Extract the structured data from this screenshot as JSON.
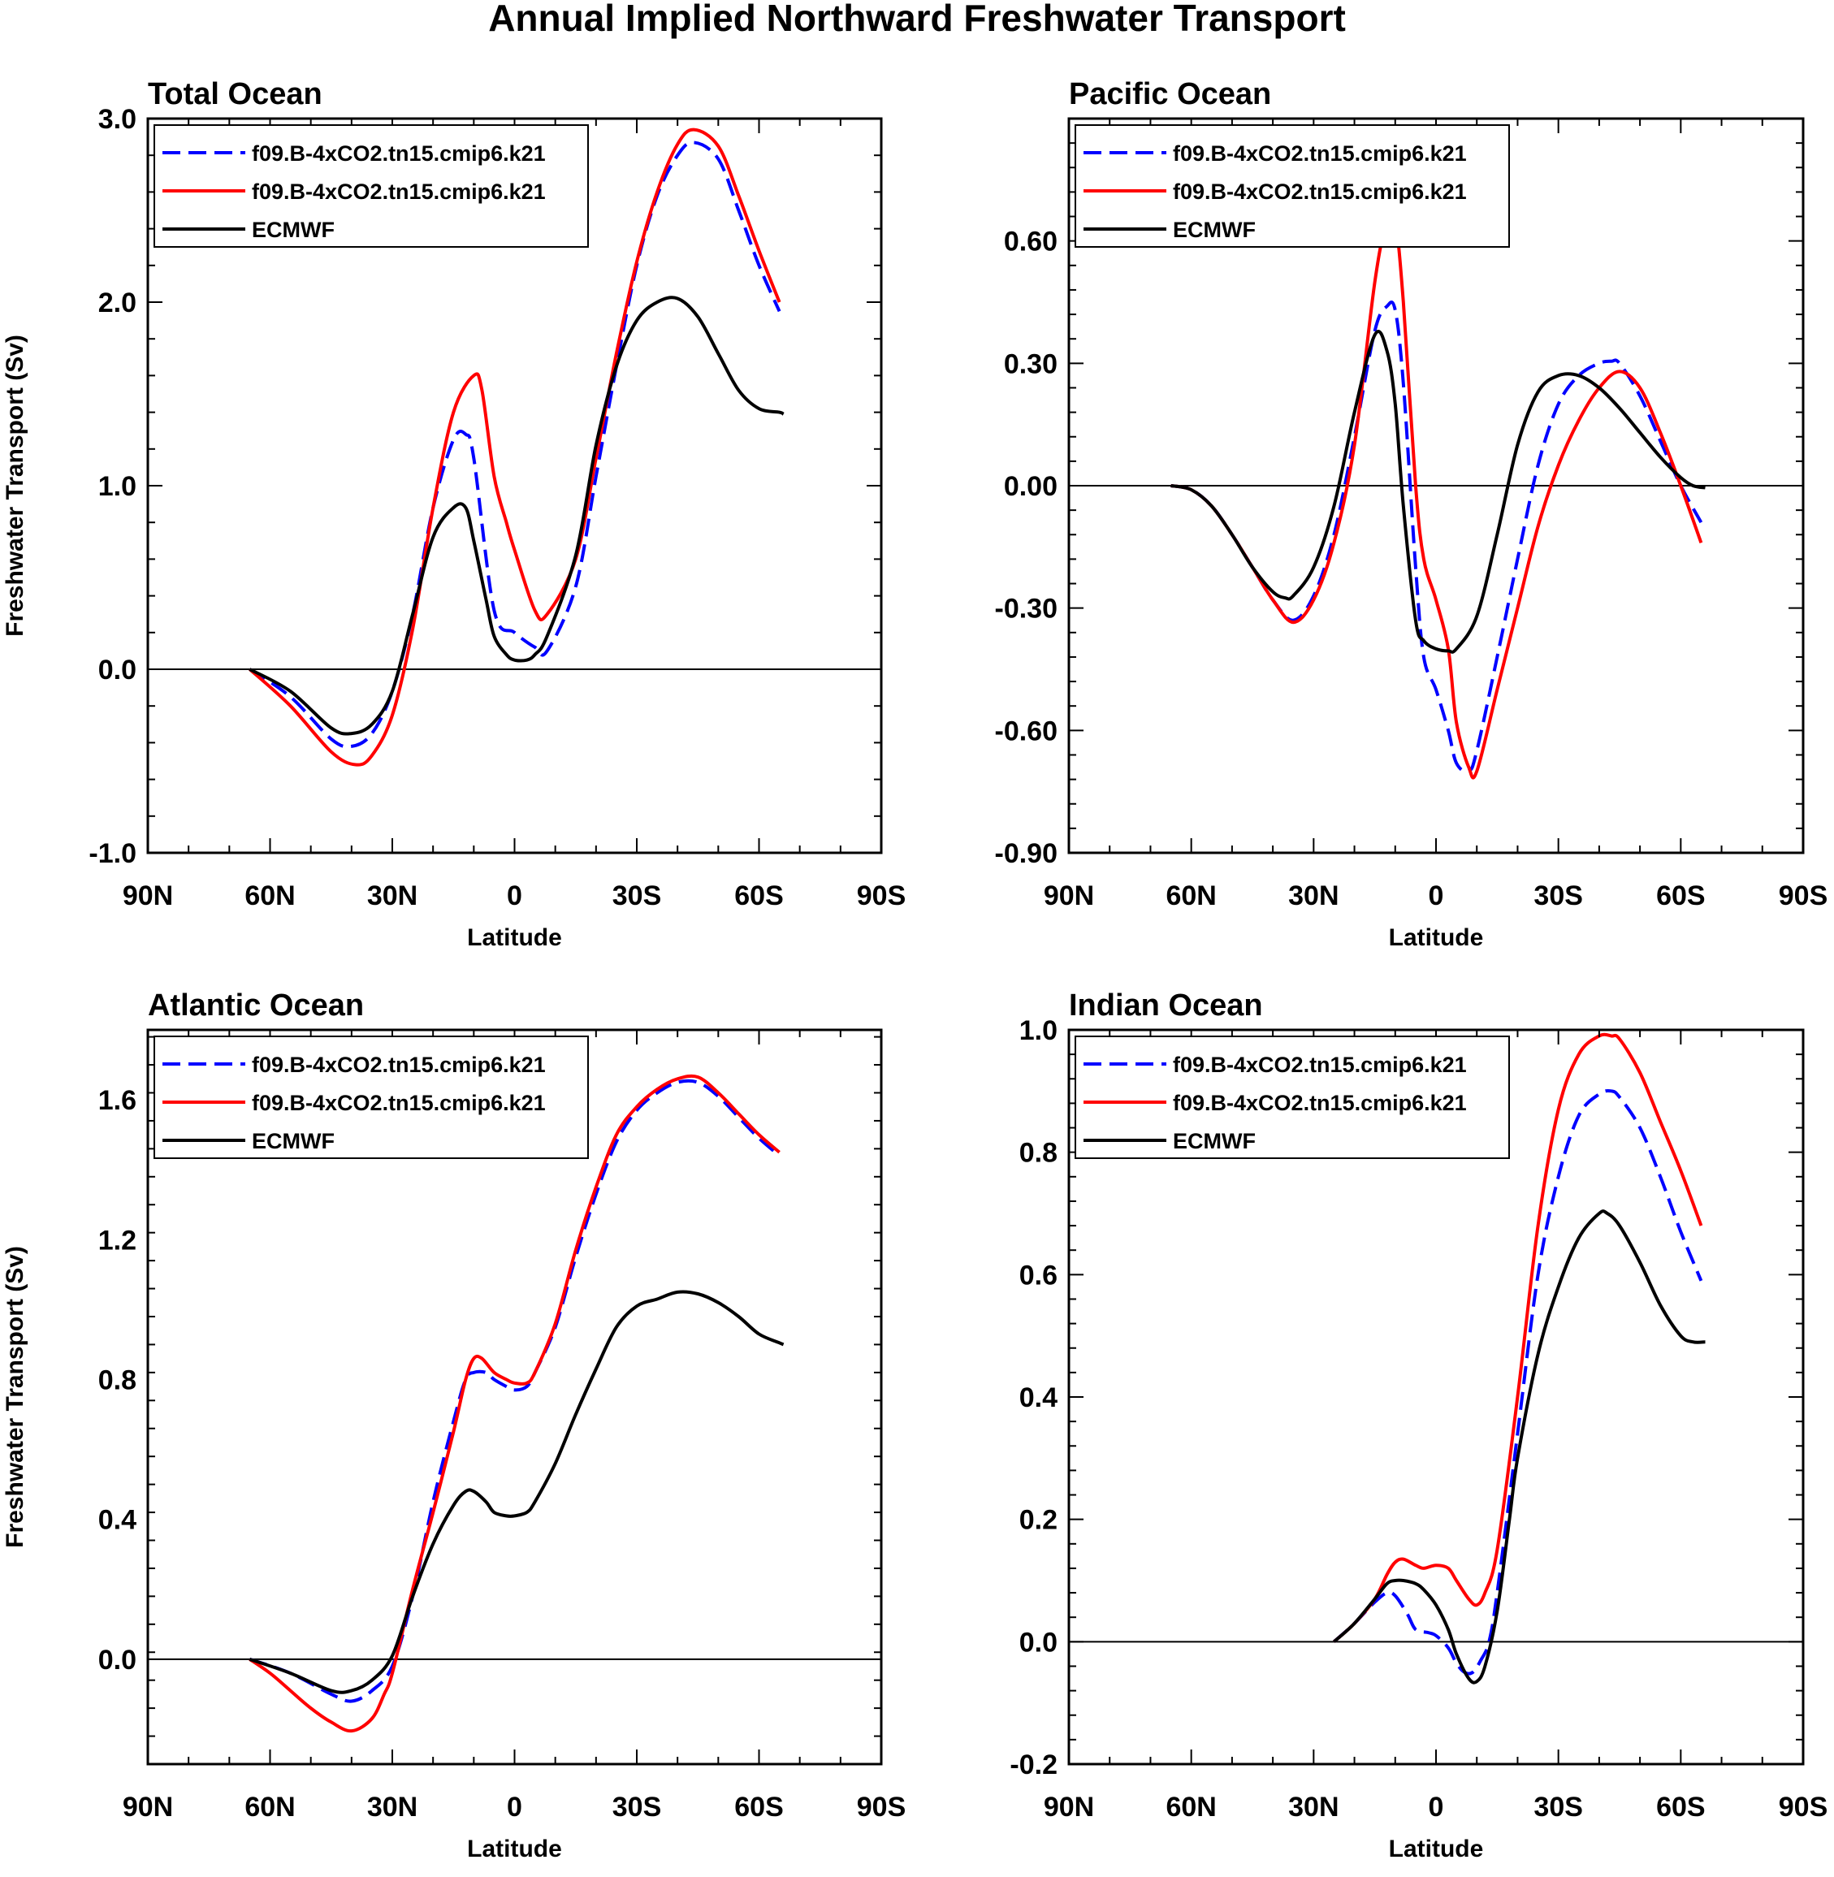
{
  "page": {
    "title": "Annual Implied Northward Freshwater Transport"
  },
  "chart_data": [
    {
      "type": "line",
      "title": "Total Ocean",
      "xlabel": "Latitude",
      "ylabel": "Freshwater Transport (Sv)",
      "xlim": [
        90,
        -90
      ],
      "ylim": [
        -1.0,
        3.0
      ],
      "xticks": [
        90,
        60,
        30,
        0,
        -30,
        -60,
        -90
      ],
      "xtick_labels": [
        "90N",
        "60N",
        "30N",
        "0",
        "30S",
        "60S",
        "90S"
      ],
      "yticks": [
        -1.0,
        0.0,
        1.0,
        2.0,
        3.0
      ],
      "ytick_labels": [
        "-1.0",
        "0.0",
        "1.0",
        "2.0",
        "3.0"
      ],
      "legend": [
        "f09.B-4xCO2.tn15.cmip6.k21",
        "f09.B-4xCO2.tn15.cmip6.k21",
        "ECMWF"
      ],
      "series": [
        {
          "name": "f09.B-4xCO2.tn15.cmip6.k21",
          "color": "#0000ff",
          "dash": "dashed",
          "x": [
            65,
            55,
            45,
            40,
            35,
            30,
            25,
            20,
            15,
            12,
            10,
            5,
            0,
            -5,
            -8,
            -15,
            -20,
            -25,
            -30,
            -35,
            -40,
            -44,
            -50,
            -55,
            -60,
            -65
          ],
          "y": [
            0,
            -0.15,
            -0.38,
            -0.42,
            -0.35,
            -0.12,
            0.3,
            0.88,
            1.25,
            1.28,
            1.15,
            0.32,
            0.2,
            0.12,
            0.1,
            0.45,
            1.05,
            1.65,
            2.2,
            2.58,
            2.8,
            2.87,
            2.78,
            2.5,
            2.2,
            1.95
          ]
        },
        {
          "name": "f09.B-4xCO2.tn15.cmip6.k21",
          "color": "#ff0000",
          "dash": "solid",
          "x": [
            65,
            55,
            45,
            39,
            35,
            30,
            25,
            20,
            15,
            10,
            8,
            5,
            2,
            0,
            -5,
            -8,
            -15,
            -20,
            -25,
            -30,
            -35,
            -40,
            -44,
            -50,
            -55,
            -60,
            -65
          ],
          "y": [
            0,
            -0.2,
            -0.45,
            -0.52,
            -0.47,
            -0.25,
            0.22,
            0.88,
            1.4,
            1.6,
            1.52,
            1.05,
            0.8,
            0.65,
            0.32,
            0.3,
            0.6,
            1.15,
            1.72,
            2.22,
            2.6,
            2.86,
            2.94,
            2.85,
            2.58,
            2.28,
            2.0
          ]
        },
        {
          "name": "ECMWF",
          "color": "#000000",
          "dash": "solid",
          "x": [
            65,
            55,
            45,
            40,
            35,
            30,
            25,
            20,
            15,
            12,
            10,
            7,
            5,
            2,
            0,
            -3,
            -5,
            -8,
            -15,
            -20,
            -25,
            -30,
            -35,
            -40,
            -45,
            -50,
            -55,
            -60,
            -65,
            -66
          ],
          "y": [
            0,
            -0.12,
            -0.32,
            -0.35,
            -0.3,
            -0.12,
            0.3,
            0.72,
            0.88,
            0.88,
            0.7,
            0.38,
            0.18,
            0.08,
            0.05,
            0.05,
            0.08,
            0.18,
            0.62,
            1.22,
            1.65,
            1.9,
            2.0,
            2.02,
            1.92,
            1.72,
            1.52,
            1.42,
            1.4,
            1.39
          ]
        }
      ]
    },
    {
      "type": "line",
      "title": "Pacific Ocean",
      "xlabel": "Latitude",
      "ylabel": "",
      "xlim": [
        90,
        -90
      ],
      "ylim": [
        -0.9,
        0.9
      ],
      "xticks": [
        90,
        60,
        30,
        0,
        -30,
        -60,
        -90
      ],
      "xtick_labels": [
        "90N",
        "60N",
        "30N",
        "0",
        "30S",
        "60S",
        "90S"
      ],
      "yticks": [
        -0.9,
        -0.6,
        -0.3,
        0.0,
        0.3,
        0.6
      ],
      "ytick_labels": [
        "-0.90",
        "-0.60",
        "-0.30",
        "0.00",
        "0.30",
        "0.60"
      ],
      "legend": [
        "f09.B-4xCO2.tn15.cmip6.k21",
        "f09.B-4xCO2.tn15.cmip6.k21",
        "ECMWF"
      ],
      "series": [
        {
          "name": "f09.B-4xCO2.tn15.cmip6.k21",
          "color": "#0000ff",
          "dash": "dashed",
          "x": [
            65,
            60,
            55,
            50,
            45,
            40,
            35,
            30,
            25,
            20,
            15,
            12,
            10,
            8,
            5,
            3,
            0,
            -3,
            -5,
            -8,
            -10,
            -15,
            -20,
            -25,
            -30,
            -35,
            -40,
            -43,
            -45,
            -50,
            -55,
            -60,
            -65
          ],
          "y": [
            0,
            -0.01,
            -0.05,
            -0.12,
            -0.2,
            -0.28,
            -0.33,
            -0.27,
            -0.12,
            0.12,
            0.38,
            0.44,
            0.43,
            0.25,
            -0.2,
            -0.42,
            -0.5,
            -0.6,
            -0.68,
            -0.7,
            -0.65,
            -0.42,
            -0.18,
            0.05,
            0.2,
            0.27,
            0.3,
            0.305,
            0.3,
            0.22,
            0.11,
            0.0,
            -0.09
          ]
        },
        {
          "name": "f09.B-4xCO2.tn15.cmip6.k21",
          "color": "#ff0000",
          "dash": "solid",
          "x": [
            65,
            60,
            55,
            50,
            45,
            40,
            35,
            30,
            25,
            20,
            15,
            12,
            10,
            8,
            5,
            3,
            0,
            -3,
            -5,
            -8,
            -10,
            -15,
            -20,
            -25,
            -30,
            -35,
            -40,
            -45,
            -50,
            -55,
            -60,
            -65
          ],
          "y": [
            0,
            -0.01,
            -0.05,
            -0.12,
            -0.2,
            -0.28,
            -0.335,
            -0.28,
            -0.14,
            0.1,
            0.5,
            0.65,
            0.65,
            0.45,
            0.0,
            -0.18,
            -0.28,
            -0.4,
            -0.58,
            -0.69,
            -0.7,
            -0.5,
            -0.3,
            -0.1,
            0.05,
            0.16,
            0.24,
            0.28,
            0.24,
            0.13,
            0.0,
            -0.14
          ]
        },
        {
          "name": "ECMWF",
          "color": "#000000",
          "dash": "solid",
          "x": [
            65,
            60,
            55,
            50,
            45,
            40,
            37,
            35,
            30,
            25,
            20,
            15,
            12,
            10,
            8,
            5,
            3,
            0,
            -3,
            -5,
            -10,
            -15,
            -20,
            -25,
            -30,
            -35,
            -40,
            -45,
            -50,
            -55,
            -60,
            -63,
            -66
          ],
          "y": [
            0,
            -0.01,
            -0.05,
            -0.12,
            -0.2,
            -0.26,
            -0.275,
            -0.27,
            -0.2,
            -0.05,
            0.18,
            0.37,
            0.33,
            0.2,
            -0.05,
            -0.33,
            -0.38,
            -0.4,
            -0.405,
            -0.4,
            -0.32,
            -0.12,
            0.1,
            0.23,
            0.27,
            0.27,
            0.24,
            0.19,
            0.13,
            0.07,
            0.02,
            0.0,
            -0.005
          ]
        }
      ]
    },
    {
      "type": "line",
      "title": "Atlantic Ocean",
      "xlabel": "Latitude",
      "ylabel": "Freshwater Transport (Sv)",
      "xlim": [
        90,
        -90
      ],
      "ylim": [
        -0.3,
        1.8
      ],
      "xticks": [
        90,
        60,
        30,
        0,
        -30,
        -60,
        -90
      ],
      "xtick_labels": [
        "90N",
        "60N",
        "30N",
        "0",
        "30S",
        "60S",
        "90S"
      ],
      "yticks": [
        0.0,
        0.4,
        0.8,
        1.2,
        1.6
      ],
      "ytick_labels": [
        "0.0",
        "0.4",
        "0.8",
        "1.2",
        "1.6"
      ],
      "legend": [
        "f09.B-4xCO2.tn15.cmip6.k21",
        "f09.B-4xCO2.tn15.cmip6.k21",
        "ECMWF"
      ],
      "series": [
        {
          "name": "f09.B-4xCO2.tn15.cmip6.k21",
          "color": "#0000ff",
          "dash": "dashed",
          "x": [
            65,
            55,
            45,
            40,
            35,
            30,
            25,
            20,
            15,
            12,
            10,
            7,
            5,
            2,
            0,
            -3,
            -5,
            -10,
            -15,
            -20,
            -25,
            -30,
            -35,
            -40,
            -45,
            -50,
            -55,
            -60,
            -65
          ],
          "y": [
            0,
            -0.04,
            -0.1,
            -0.12,
            -0.09,
            -0.02,
            0.18,
            0.45,
            0.68,
            0.8,
            0.82,
            0.82,
            0.8,
            0.78,
            0.77,
            0.78,
            0.82,
            0.95,
            1.15,
            1.33,
            1.48,
            1.57,
            1.62,
            1.65,
            1.65,
            1.61,
            1.55,
            1.49,
            1.44
          ]
        },
        {
          "name": "f09.B-4xCO2.tn15.cmip6.k21",
          "color": "#ff0000",
          "dash": "solid",
          "x": [
            65,
            60,
            55,
            50,
            45,
            40,
            35,
            32,
            30,
            25,
            20,
            15,
            12,
            10,
            8,
            5,
            2,
            0,
            -3,
            -5,
            -10,
            -15,
            -20,
            -25,
            -30,
            -35,
            -40,
            -45,
            -50,
            -55,
            -60,
            -65
          ],
          "y": [
            0,
            -0.04,
            -0.09,
            -0.14,
            -0.18,
            -0.205,
            -0.17,
            -0.1,
            -0.04,
            0.2,
            0.42,
            0.65,
            0.8,
            0.86,
            0.86,
            0.82,
            0.8,
            0.79,
            0.79,
            0.82,
            0.96,
            1.17,
            1.35,
            1.5,
            1.58,
            1.63,
            1.66,
            1.665,
            1.62,
            1.56,
            1.5,
            1.45
          ]
        },
        {
          "name": "ECMWF",
          "color": "#000000",
          "dash": "solid",
          "x": [
            65,
            55,
            45,
            40,
            35,
            30,
            25,
            20,
            15,
            12,
            10,
            7,
            5,
            2,
            0,
            -3,
            -5,
            -10,
            -15,
            -20,
            -25,
            -30,
            -35,
            -40,
            -45,
            -50,
            -55,
            -60,
            -65,
            -66
          ],
          "y": [
            0,
            -0.04,
            -0.09,
            -0.09,
            -0.06,
            0.01,
            0.18,
            0.33,
            0.44,
            0.48,
            0.48,
            0.45,
            0.42,
            0.41,
            0.41,
            0.42,
            0.45,
            0.56,
            0.7,
            0.83,
            0.95,
            1.01,
            1.03,
            1.05,
            1.045,
            1.02,
            0.98,
            0.93,
            0.905,
            0.9
          ]
        }
      ]
    },
    {
      "type": "line",
      "title": "Indian Ocean",
      "xlabel": "Latitude",
      "ylabel": "",
      "xlim": [
        90,
        -90
      ],
      "ylim": [
        -0.2,
        1.0
      ],
      "xticks": [
        90,
        60,
        30,
        0,
        -30,
        -60,
        -90
      ],
      "xtick_labels": [
        "90N",
        "60N",
        "30N",
        "0",
        "30S",
        "60S",
        "90S"
      ],
      "yticks": [
        -0.2,
        0.0,
        0.2,
        0.4,
        0.6,
        0.8,
        1.0
      ],
      "ytick_labels": [
        "-0.2",
        "0.0",
        "0.2",
        "0.4",
        "0.6",
        "0.8",
        "1.0"
      ],
      "legend": [
        "f09.B-4xCO2.tn15.cmip6.k21",
        "f09.B-4xCO2.tn15.cmip6.k21",
        "ECMWF"
      ],
      "series": [
        {
          "name": "f09.B-4xCO2.tn15.cmip6.k21",
          "color": "#0000ff",
          "dash": "dashed",
          "x": [
            25,
            20,
            15,
            12,
            10,
            7,
            5,
            2,
            0,
            -3,
            -5,
            -7,
            -9,
            -11,
            -13,
            -15,
            -20,
            -25,
            -30,
            -35,
            -40,
            -43,
            -45,
            -50,
            -55,
            -60,
            -65
          ],
          "y": [
            0,
            0.03,
            0.065,
            0.08,
            0.075,
            0.045,
            0.02,
            0.015,
            0.01,
            -0.01,
            -0.035,
            -0.05,
            -0.05,
            -0.03,
            0.0,
            0.08,
            0.34,
            0.6,
            0.76,
            0.86,
            0.895,
            0.9,
            0.89,
            0.84,
            0.76,
            0.67,
            0.59
          ]
        },
        {
          "name": "f09.B-4xCO2.tn15.cmip6.k21",
          "color": "#ff0000",
          "dash": "solid",
          "x": [
            25,
            20,
            15,
            12,
            10,
            8,
            5,
            3,
            0,
            -3,
            -5,
            -8,
            -10,
            -12,
            -15,
            -20,
            -25,
            -30,
            -35,
            -40,
            -43,
            -45,
            -50,
            -55,
            -60,
            -65
          ],
          "y": [
            0,
            0.03,
            0.07,
            0.11,
            0.13,
            0.135,
            0.125,
            0.12,
            0.125,
            0.12,
            0.1,
            0.07,
            0.06,
            0.08,
            0.15,
            0.4,
            0.68,
            0.87,
            0.96,
            0.99,
            0.99,
            0.985,
            0.93,
            0.85,
            0.77,
            0.68
          ]
        },
        {
          "name": "ECMWF",
          "color": "#000000",
          "dash": "solid",
          "x": [
            25,
            20,
            15,
            12,
            10,
            8,
            5,
            3,
            0,
            -3,
            -5,
            -8,
            -10,
            -12,
            -15,
            -18,
            -20,
            -25,
            -30,
            -35,
            -40,
            -42,
            -45,
            -50,
            -55,
            -60,
            -63,
            -66
          ],
          "y": [
            0,
            0.03,
            0.07,
            0.095,
            0.1,
            0.1,
            0.095,
            0.085,
            0.06,
            0.02,
            -0.02,
            -0.06,
            -0.065,
            -0.04,
            0.05,
            0.2,
            0.3,
            0.47,
            0.58,
            0.66,
            0.7,
            0.7,
            0.68,
            0.62,
            0.55,
            0.5,
            0.49,
            0.49
          ]
        }
      ]
    }
  ]
}
